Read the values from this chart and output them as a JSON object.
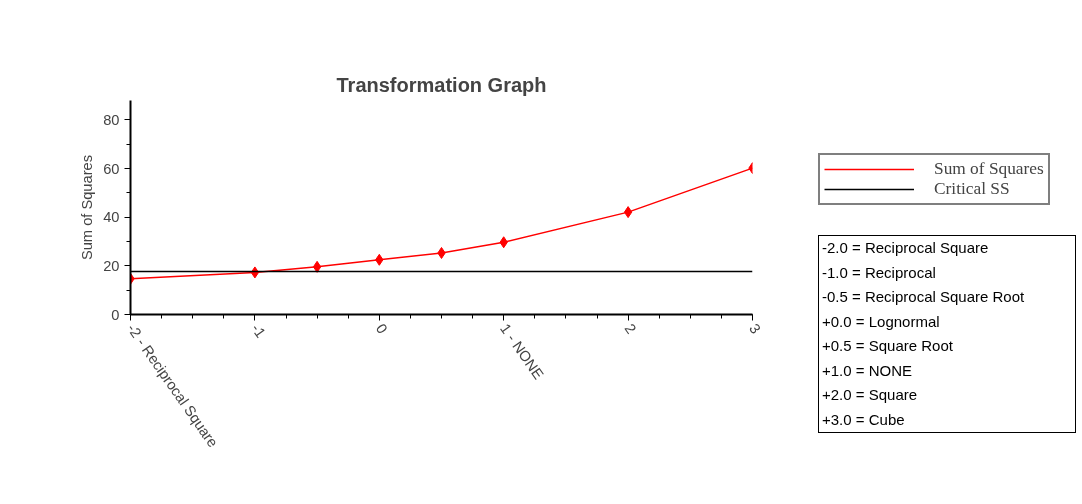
{
  "chart_data": {
    "type": "line",
    "title": "Transformation Graph",
    "ylabel": "Sum of Squares",
    "x": [
      -2,
      -1,
      -0.5,
      0,
      0.5,
      1,
      2,
      3
    ],
    "series": [
      {
        "name": "Sum of Squares",
        "color": "#ff0000",
        "marker": "diamond",
        "values": [
          14.7,
          17.3,
          19.6,
          22.5,
          25.3,
          29.7,
          42.1,
          60.2
        ]
      },
      {
        "name": "Critical SS",
        "color": "#000000",
        "marker": "none",
        "x": [
          -2,
          3
        ],
        "values": [
          17.7,
          17.7
        ]
      }
    ],
    "xlim": [
      -2,
      3
    ],
    "ylim": [
      0,
      88
    ],
    "xticks": [
      {
        "value": -2,
        "label": "-2 - Reciprocal Square"
      },
      -1,
      0,
      {
        "value": 1,
        "label": "1 - NONE"
      },
      2,
      3
    ],
    "yticks": [
      0,
      20,
      40,
      60,
      80
    ],
    "grid": false,
    "legend": "right",
    "line_style": "solid",
    "annotations": [
      "-2.0 = Reciprocal Square\n-1.0 = Reciprocal\n-0.5 = Reciprocal Square Root\n+0.0 = Lognormal\n+0.5 = Square Root\n+1.0 = NONE\n+2.0 = Square\n+3.0 = Cube"
    ]
  }
}
